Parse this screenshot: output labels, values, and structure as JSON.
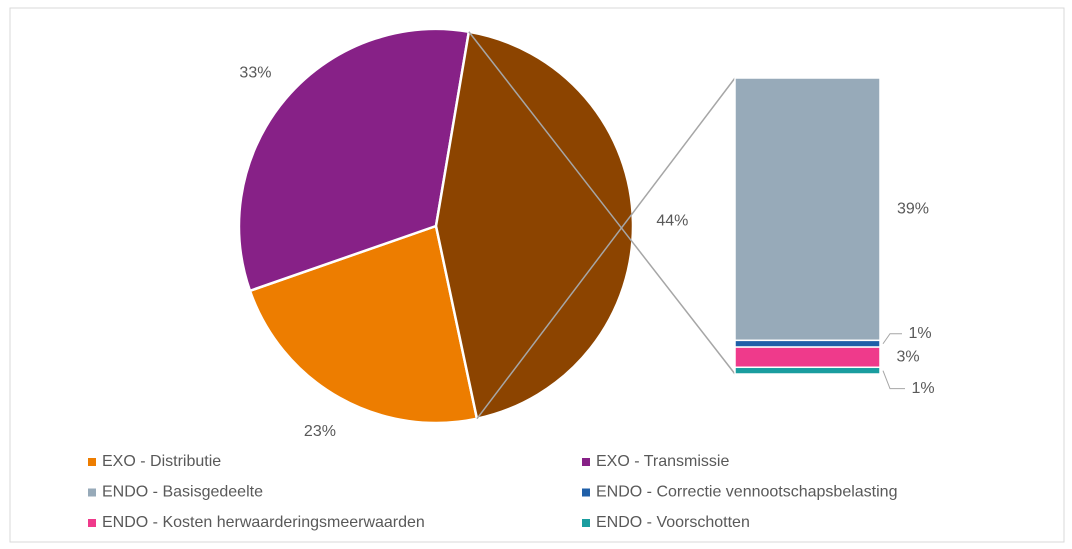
{
  "chart_data": {
    "type": "pie-of-bar",
    "pie": {
      "names": [
        "EXO - Distributie",
        "EXO - Transmissie",
        null
      ],
      "values": [
        23,
        33,
        44
      ],
      "value_labels": [
        "23%",
        "33%",
        "44%"
      ],
      "colors": [
        "#ed7d00",
        "#872187",
        "#8c4400"
      ]
    },
    "bar": {
      "names": [
        "ENDO - Basisgedeelte",
        "ENDO - Correctie vennootschapsbelasting",
        "ENDO - Kosten herwaarderingsmeerwaarden",
        "ENDO - Voorschotten"
      ],
      "values": [
        39,
        1,
        3,
        1
      ],
      "value_labels": [
        "39%",
        "1%",
        "3%",
        "1%"
      ],
      "colors": [
        "#97aab9",
        "#1f5fa8",
        "#ef3a8b",
        "#1a9d9f"
      ]
    },
    "legend": "bottom"
  }
}
